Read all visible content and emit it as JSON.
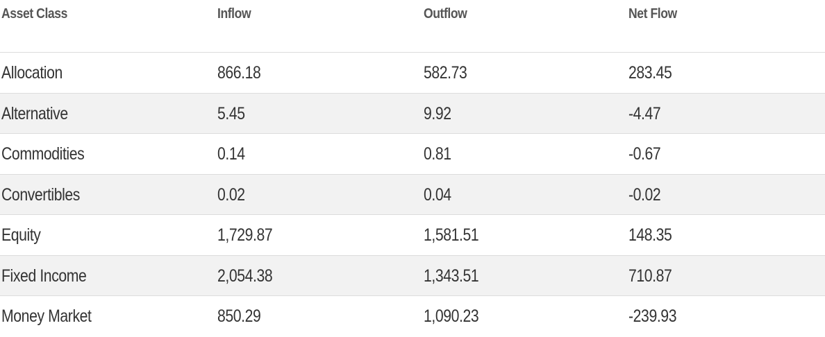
{
  "table": {
    "header": [
      "Asset Class",
      "Inflow",
      "Outflow",
      "Net Flow"
    ],
    "rows": [
      [
        "Allocation",
        "866.18",
        "582.73",
        "283.45"
      ],
      [
        "Alternative",
        "5.45",
        "9.92",
        "-4.47"
      ],
      [
        "Commodities",
        "0.14",
        "0.81",
        "-0.67"
      ],
      [
        "Convertibles",
        "0.02",
        "0.04",
        "-0.02"
      ],
      [
        "Equity",
        "1,729.87",
        "1,581.51",
        "148.35"
      ],
      [
        "Fixed Income",
        "2,054.38",
        "1,343.51",
        "710.87"
      ],
      [
        "Money Market",
        "850.29",
        "1,090.23",
        "-239.93"
      ]
    ]
  }
}
